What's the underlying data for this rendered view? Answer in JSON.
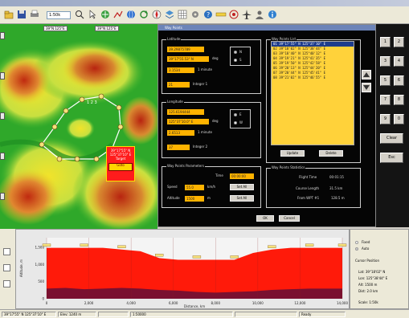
{
  "toolbar": {
    "zoom": "1:50k",
    "icons": [
      "folder-icon",
      "save-icon",
      "print-icon",
      "zoom-icon",
      "pointer-icon",
      "pan-icon",
      "route-icon",
      "globe-icon",
      "refresh-icon",
      "compass-icon",
      "layer-icon",
      "grid-icon",
      "settings-icon",
      "help-icon",
      "measure-icon",
      "target-icon",
      "plane-icon",
      "user-icon",
      "info-icon"
    ]
  },
  "map": {
    "coord_left": "39°N 125°E",
    "coord_right": "39°N 125°E",
    "route_label": "1 2 3",
    "popup": {
      "line1": "39°17'55\" N",
      "line2": "125°37'10\" E",
      "line3": "Target",
      "button": "Goto"
    },
    "colors": {
      "low": "#25a020",
      "mid": "#f0e020",
      "high": "#c82a10",
      "route": "#ffffff"
    }
  },
  "dialog": {
    "title": "Way Points",
    "latitude": {
      "label": "Latitude",
      "deg": "39.29875789",
      "dms": "39°17'55.53\" N",
      "deg_label": "deg",
      "ref": "3.1534",
      "ref_label": "1 minute",
      "integer": "21",
      "integer_label": "Integer 1",
      "radio_n": "N",
      "radio_s": "S"
    },
    "longitude": {
      "label": "Longitude",
      "deg": "125.6194444",
      "dms": "125°37'10.0\" E",
      "deg_label": "deg",
      "ref": "2.6513",
      "ref_label": "1 minute",
      "integer": "37",
      "integer_label": "Integer 2",
      "radio_e": "E",
      "radio_w": "W"
    },
    "waypoint_params": {
      "label": "Way Points Parameters",
      "time_label": "Time",
      "time": "00:00:00",
      "speed_label": "Speed",
      "speed": "55.0",
      "speed_unit": "km/h",
      "speed_btn": "Set All",
      "altitude_label": "Altitude",
      "altitude": "1500",
      "altitude_unit": "m",
      "altitude_btn": "Set All"
    },
    "waypoint_list": {
      "label": "Way Points List",
      "rows": [
        "01  39°17'55\" N  125°37'10\" E",
        "02  39°18'02\" N  125°38'44\" E",
        "03  39°18'40\" N  125°40'12\" E",
        "04  39°19'21\" N  125°41'35\" E",
        "05  39°19'50\" N  125°42'58\" E",
        "06  39°20'13\" N  125°44'20\" E",
        "07  39°20'44\" N  125°45'41\" E",
        "08  39°21'02\" N  125°46'55\" E"
      ],
      "selected_index": 0,
      "update_btn": "Update",
      "delete_btn": "Delete"
    },
    "statistics": {
      "label": "Way Points Statistics",
      "flight_time_label": "Flight Time",
      "flight_time": "00:01:15",
      "course_label": "Course Length",
      "course": "31.5 km",
      "from_label": "From WPT #1",
      "from": "128.5 m"
    },
    "ok": "OK",
    "cancel": "Cancel"
  },
  "side_buttons": [
    "1",
    "2",
    "3",
    "4",
    "5",
    "6",
    "7",
    "8",
    "9",
    "0",
    "Clear",
    "Esc"
  ],
  "profile": {
    "chart_data": {
      "type": "area",
      "title": "",
      "xlabel": "Distance, km",
      "ylabel": "Altitude, m",
      "x": [
        0,
        2,
        4,
        6,
        8,
        10,
        12,
        14,
        16,
        18,
        20,
        22,
        24,
        26,
        28,
        30,
        31.5
      ],
      "series": [
        {
          "name": "",
          "values": [
            1500,
            1500,
            1500,
            1500,
            1450,
            1400,
            1200,
            1150,
            1150,
            1150,
            1150,
            1350,
            1450,
            1500,
            1500,
            1500,
            1500
          ]
        },
        {
          "name": "",
          "values": [
            300,
            320,
            280,
            300,
            320,
            300,
            260,
            240,
            200,
            180,
            200,
            220,
            260,
            280,
            300,
            300,
            300
          ]
        }
      ],
      "xlim": [
        0,
        31.5
      ],
      "ylim": [
        0,
        1800
      ],
      "xticks": [
        "0",
        "2,000",
        "4,000",
        "6,000",
        "8,000",
        "10,000",
        "12,000",
        "14,000"
      ],
      "yticks": [
        "0",
        "500",
        "1,000",
        "1,500"
      ],
      "grid": true,
      "colors": {
        "flight": "#ff1a0a",
        "terrain": "#7a1030",
        "marker": "#f6e27a"
      }
    },
    "side": {
      "radio_fixed": "Fixed",
      "radio_auto": "Auto",
      "section": "Cursor Position",
      "lat": "Lat: 39°18'02\" N",
      "lon": "Lon: 125°38'44\" E",
      "alt": "Alt: 1500 m",
      "dist": "Dist: 2.0 km",
      "footer": "Scale: 1:50k"
    }
  },
  "statusbar": {
    "cells": [
      "39°17'55\" N 125°37'10\" E",
      "Elev: 1240 m",
      "",
      "1:50000",
      "",
      "Ready"
    ]
  }
}
